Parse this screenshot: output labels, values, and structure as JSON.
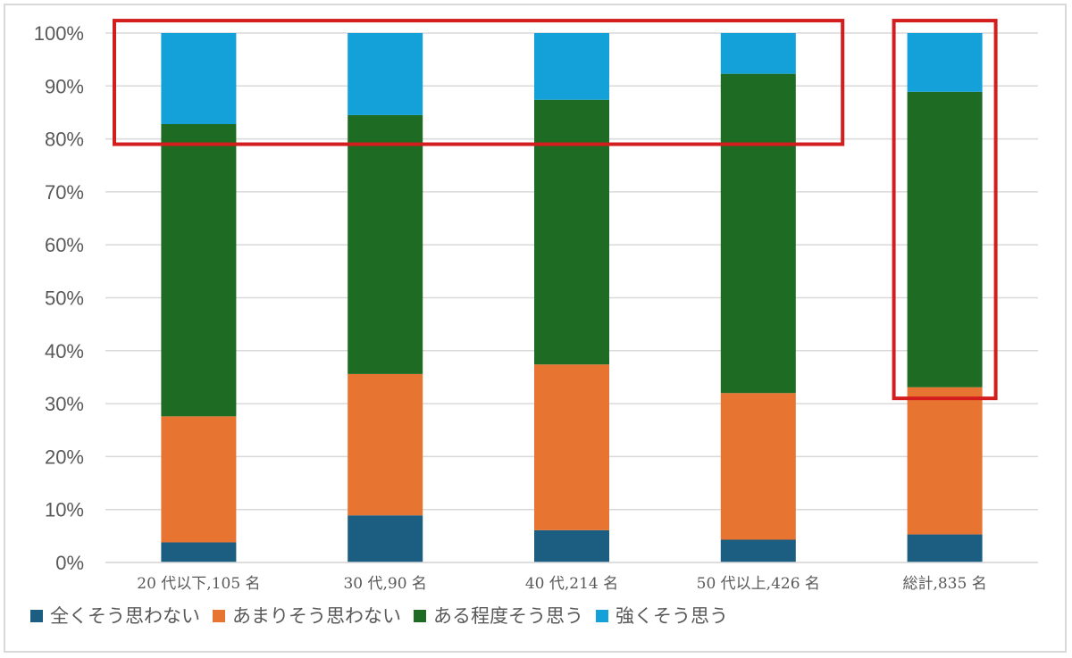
{
  "chart_data": {
    "type": "bar",
    "stacked": true,
    "categories": [
      "20 代以下,105 名",
      "30 代,90 名",
      "40 代,214 名",
      "50 代以上,426 名",
      "総計,835 名"
    ],
    "series": [
      {
        "name": "全くそう思わない",
        "color": "#1b5e82",
        "values": [
          3.8,
          8.9,
          6.1,
          4.3,
          5.3
        ]
      },
      {
        "name": "あまりそう思わない",
        "color": "#e87432",
        "values": [
          23.8,
          26.7,
          31.3,
          27.7,
          27.8
        ]
      },
      {
        "name": "ある程度そう思う",
        "color": "#1e6b24",
        "values": [
          55.2,
          48.9,
          50.0,
          60.3,
          55.8
        ]
      },
      {
        "name": "強くそう思う",
        "color": "#14a0d8",
        "values": [
          17.2,
          15.5,
          12.6,
          7.7,
          11.1
        ]
      }
    ],
    "ylim": [
      0,
      100
    ],
    "yticks": [
      "0%",
      "10%",
      "20%",
      "30%",
      "40%",
      "50%",
      "60%",
      "70%",
      "80%",
      "90%",
      "100%"
    ],
    "grid": true,
    "legend_position": "bottom-left",
    "highlights": [
      {
        "label": "top segments of age groups",
        "from_category": 0,
        "to_category": 3,
        "y_range": [
          79,
          101
        ]
      },
      {
        "label": "total column",
        "from_category": 4,
        "to_category": 4,
        "y_range": [
          31,
          101
        ]
      }
    ],
    "highlight_color": "#d41e1e"
  }
}
